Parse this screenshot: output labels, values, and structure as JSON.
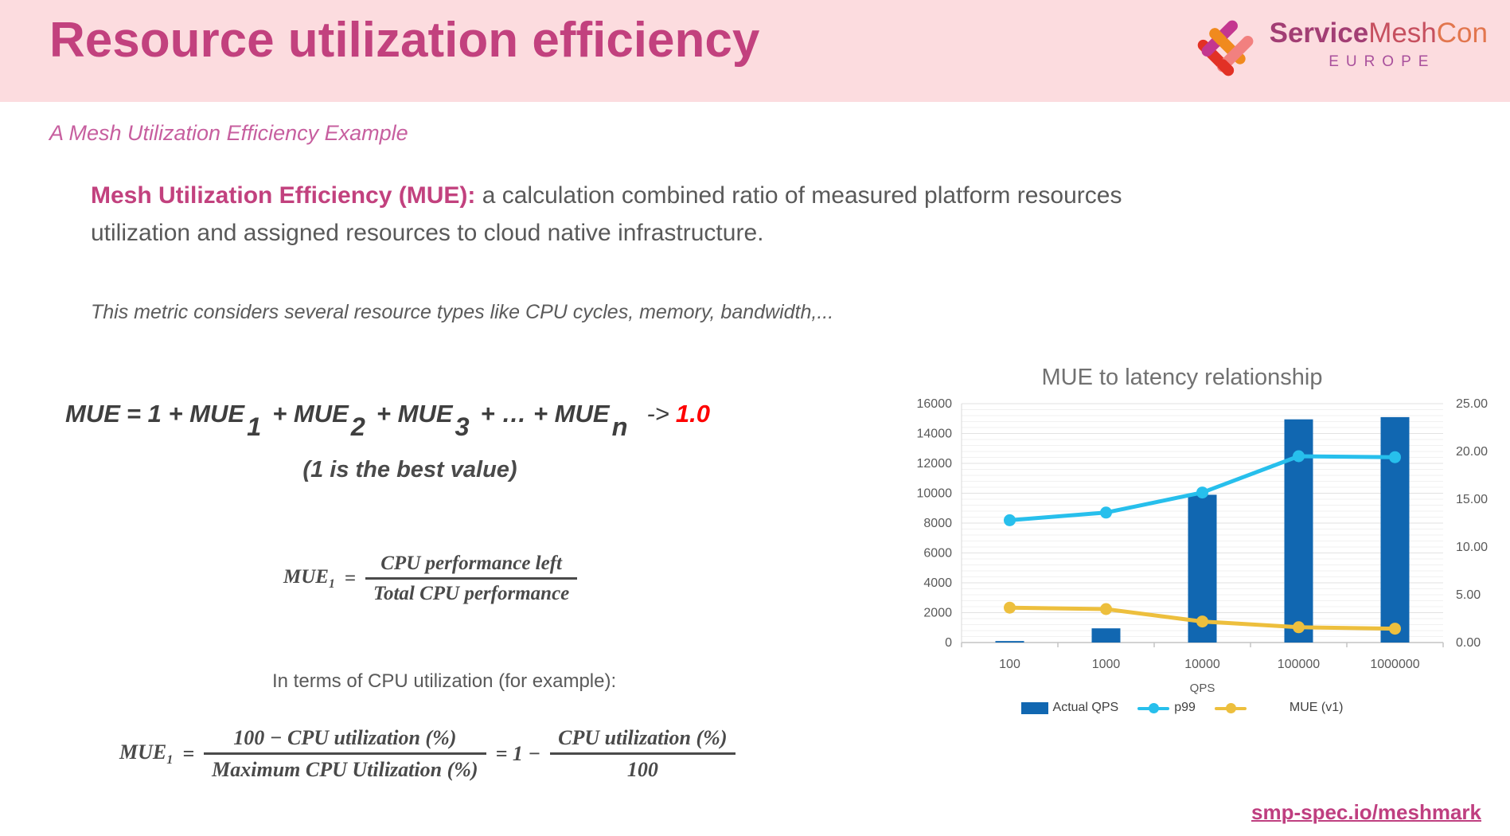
{
  "header": {
    "title": "Resource utilization efficiency",
    "logo": {
      "brand_service": "Service",
      "brand_mesh": "Mesh",
      "brand_con": "Con",
      "region": "EUROPE"
    }
  },
  "subtitle": "A Mesh Utilization Efficiency Example",
  "definition": {
    "term": "Mesh Utilization Efficiency (MUE):",
    "text": " a calculation combined ratio of measured platform resources utilization and assigned resources to cloud native infrastructure."
  },
  "note": "This metric considers several resource types like CPU cycles, memory, bandwidth,...",
  "formula_sum": {
    "lhs": "MUE",
    "eq": "= 1 + MUE",
    "sub1": "1",
    "op1": "+ MUE",
    "sub2": "2",
    "op2": "+ MUE",
    "sub3": "3",
    "op3": "+ … + MUE",
    "subn": "n",
    "arrow": "->",
    "target": "1.0",
    "caption": "(1 is the best value)"
  },
  "formula_mue1": {
    "lhs": "MUE",
    "lhs_sub": "1",
    "equals": "=",
    "numerator": "CPU performance left",
    "denominator": "Total CPU performance"
  },
  "cpu_note": "In terms of CPU utilization (for example):",
  "formula_cpu": {
    "lhs": "MUE",
    "lhs_sub": "1",
    "equals": "=",
    "num1": "100 − CPU utilization (%)",
    "den1": "Maximum CPU Utilization (%)",
    "mid": "= 1 −",
    "num2": "CPU utilization (%)",
    "den2": "100"
  },
  "footer": {
    "link": "smp-spec.io/meshmark"
  },
  "chart_data": {
    "type": "combo",
    "title": "MUE to latency relationship",
    "xlabel": "QPS",
    "categories": [
      "100",
      "1000",
      "10000",
      "100000",
      "1000000"
    ],
    "left_axis": {
      "min": 0,
      "max": 16000,
      "major_step": 2000,
      "minor_step": 400,
      "tick_labels": [
        "0",
        "2000",
        "4000",
        "6000",
        "8000",
        "10000",
        "12000",
        "14000",
        "16000"
      ]
    },
    "right_axis": {
      "min": 0,
      "max": 25,
      "step": 5,
      "tick_labels": [
        "0.00",
        "5.00",
        "10.00",
        "15.00",
        "20.00",
        "25.00"
      ]
    },
    "series": [
      {
        "name": "Actual QPS",
        "type": "bar",
        "axis": "left",
        "color": "#1167b1",
        "values": [
          100,
          950,
          9900,
          14950,
          15100
        ]
      },
      {
        "name": "p99",
        "type": "line",
        "axis": "right",
        "color": "#27bfec",
        "values": [
          12.8,
          13.6,
          15.7,
          19.5,
          19.4
        ]
      },
      {
        "name": "MUE (v1)",
        "type": "line",
        "axis": "right",
        "color": "#edbf3d",
        "values": [
          3.65,
          3.5,
          2.2,
          1.6,
          1.45
        ]
      }
    ],
    "legend_position": "bottom",
    "grid": true
  },
  "colors": {
    "banner_bg": "#fcdcdf",
    "title_pink": "#c2417e",
    "body_gray": "#595959",
    "formula_red": "#fe0000",
    "bar_blue": "#1167b1",
    "line_cyan": "#27bfec",
    "line_yellow": "#edbf3d",
    "logo_magenta": "#c4368f",
    "logo_orange": "#f08a1e",
    "logo_red": "#e23125",
    "logo_pink": "#f2807f"
  }
}
